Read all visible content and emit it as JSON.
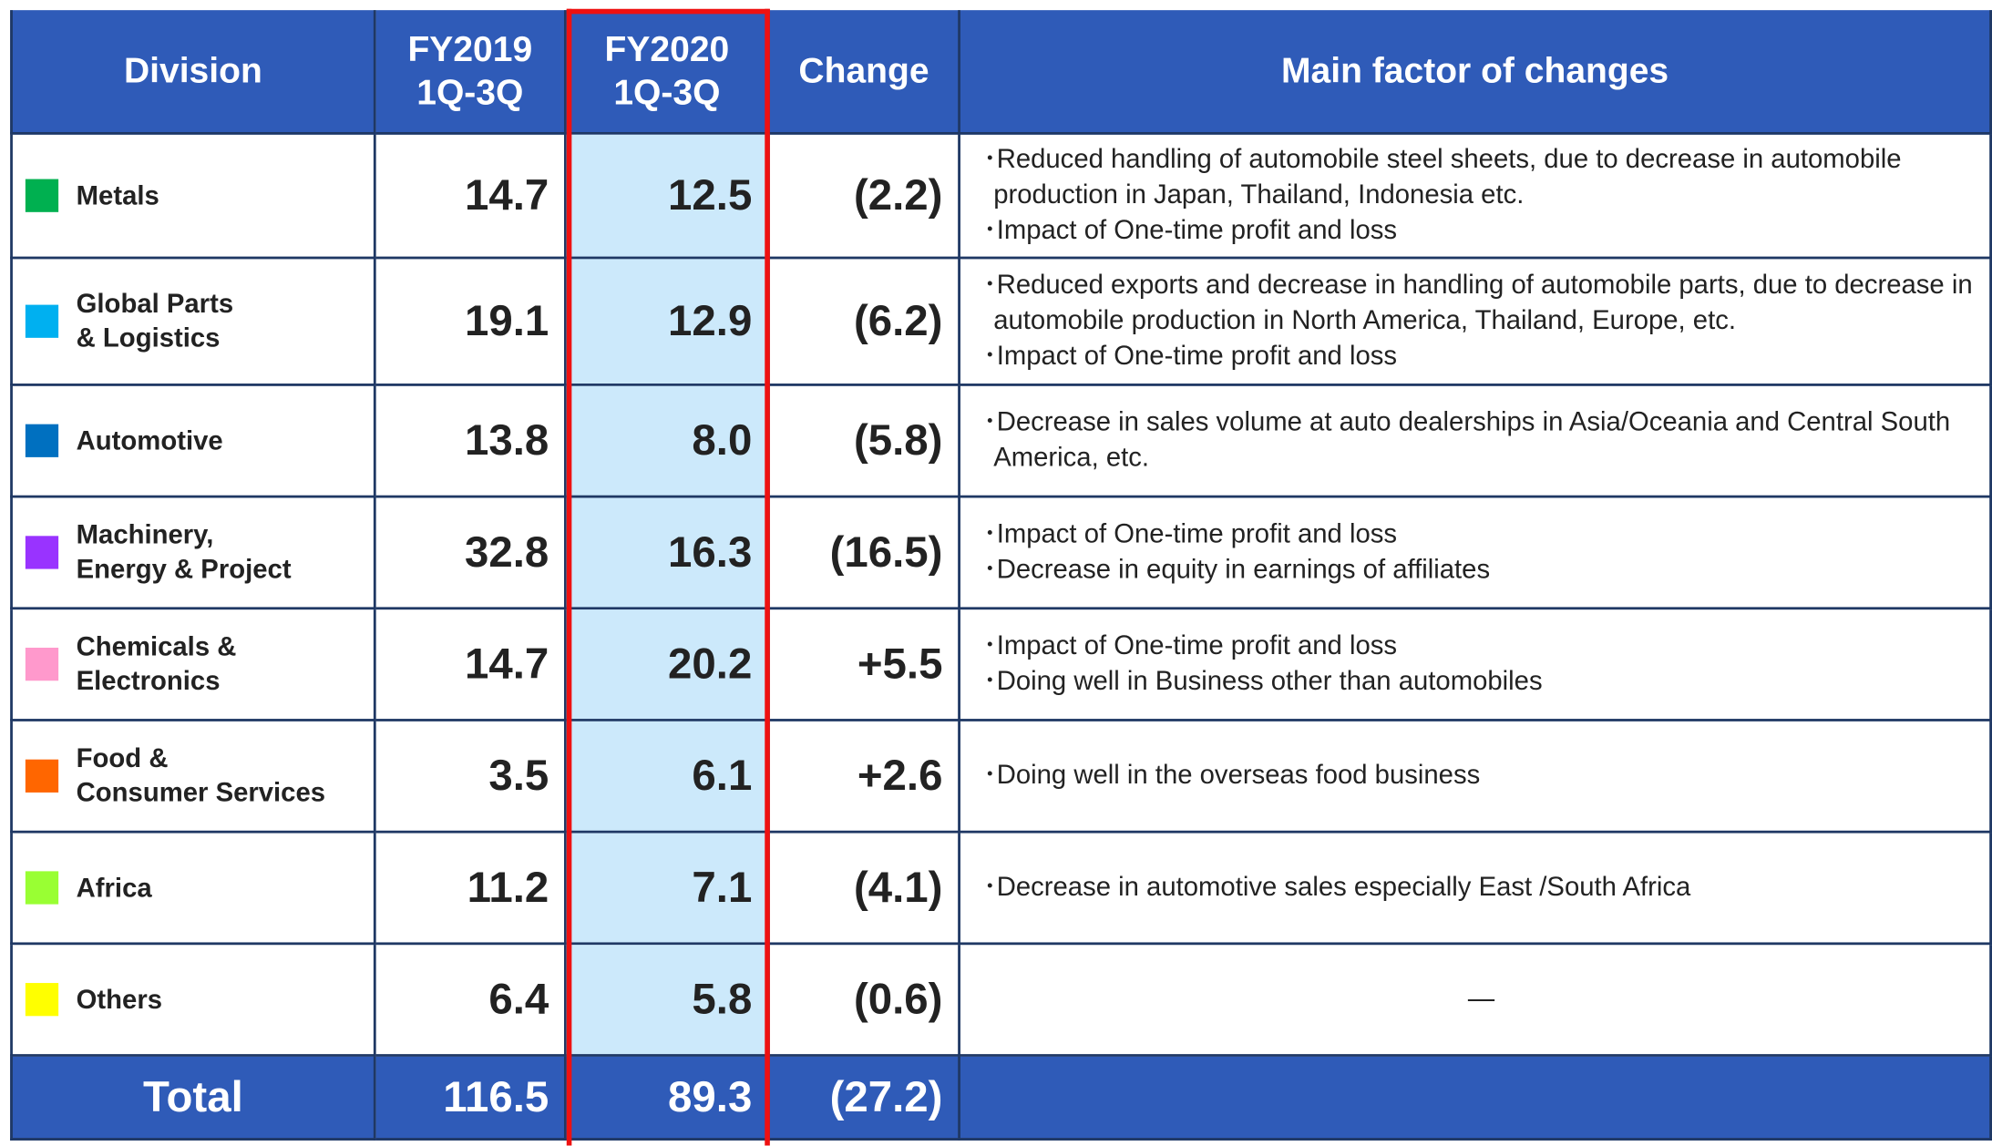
{
  "table": {
    "header": [
      "Division",
      [
        "FY2019",
        "1Q-3Q"
      ],
      [
        "FY2020",
        "1Q-3Q"
      ],
      "Change",
      "Main factor of changes"
    ],
    "rows": [
      {
        "division": [
          "Metals"
        ],
        "color": "#00b050",
        "fy2019": "14.7",
        "fy2020": "12.5",
        "change": "(2.2)",
        "factors": [
          "･Reduced handling of automobile steel sheets, due to decrease in automobile production in Japan, Thailand, Indonesia etc.",
          "･Impact of One-time profit and loss"
        ]
      },
      {
        "division": [
          "Global Parts",
          "& Logistics"
        ],
        "color": "#00b0f0",
        "fy2019": "19.1",
        "fy2020": "12.9",
        "change": "(6.2)",
        "factors": [
          "･Reduced  exports and decrease in handling of automobile parts, due to decrease in automobile production in North America, Thailand, Europe, etc.",
          "･Impact of One-time profit and loss"
        ]
      },
      {
        "division": [
          "Automotive"
        ],
        "color": "#0070c0",
        "fy2019": "13.8",
        "fy2020": "8.0",
        "change": "(5.8)",
        "factors": [
          "･Decrease in sales volume at auto dealerships in Asia/Oceania and Central South America, etc."
        ]
      },
      {
        "division": [
          "Machinery,",
          "Energy & Project"
        ],
        "color": "#9933ff",
        "fy2019": "32.8",
        "fy2020": "16.3",
        "change": "(16.5)",
        "factors": [
          "･Impact of One-time profit and loss",
          "･Decrease in equity in earnings of affiliates"
        ]
      },
      {
        "division": [
          "Chemicals &",
          "Electronics"
        ],
        "color": "#ff99cc",
        "fy2019": "14.7",
        "fy2020": "20.2",
        "change": "+5.5",
        "factors": [
          "･Impact of One-time profit and loss",
          "･Doing well in Business other than automobiles"
        ]
      },
      {
        "division": [
          "Food &",
          "Consumer Services"
        ],
        "color": "#ff6600",
        "fy2019": "3.5",
        "fy2020": "6.1",
        "change": "+2.6",
        "factors": [
          "･Doing well in the overseas food business"
        ]
      },
      {
        "division": [
          "Africa"
        ],
        "color": "#99ff33",
        "fy2019": "11.2",
        "fy2020": "7.1",
        "change": "(4.1)",
        "factors": [
          "･Decrease in automotive sales especially East /South Africa"
        ]
      },
      {
        "division": [
          "Others"
        ],
        "color": "#ffff00",
        "fy2019": "6.4",
        "fy2020": "5.8",
        "change": "(0.6)",
        "factors": [
          "—"
        ]
      }
    ],
    "total": {
      "label": "Total",
      "fy2019": "116.5",
      "fy2020": "89.3",
      "change": "(27.2)"
    }
  }
}
